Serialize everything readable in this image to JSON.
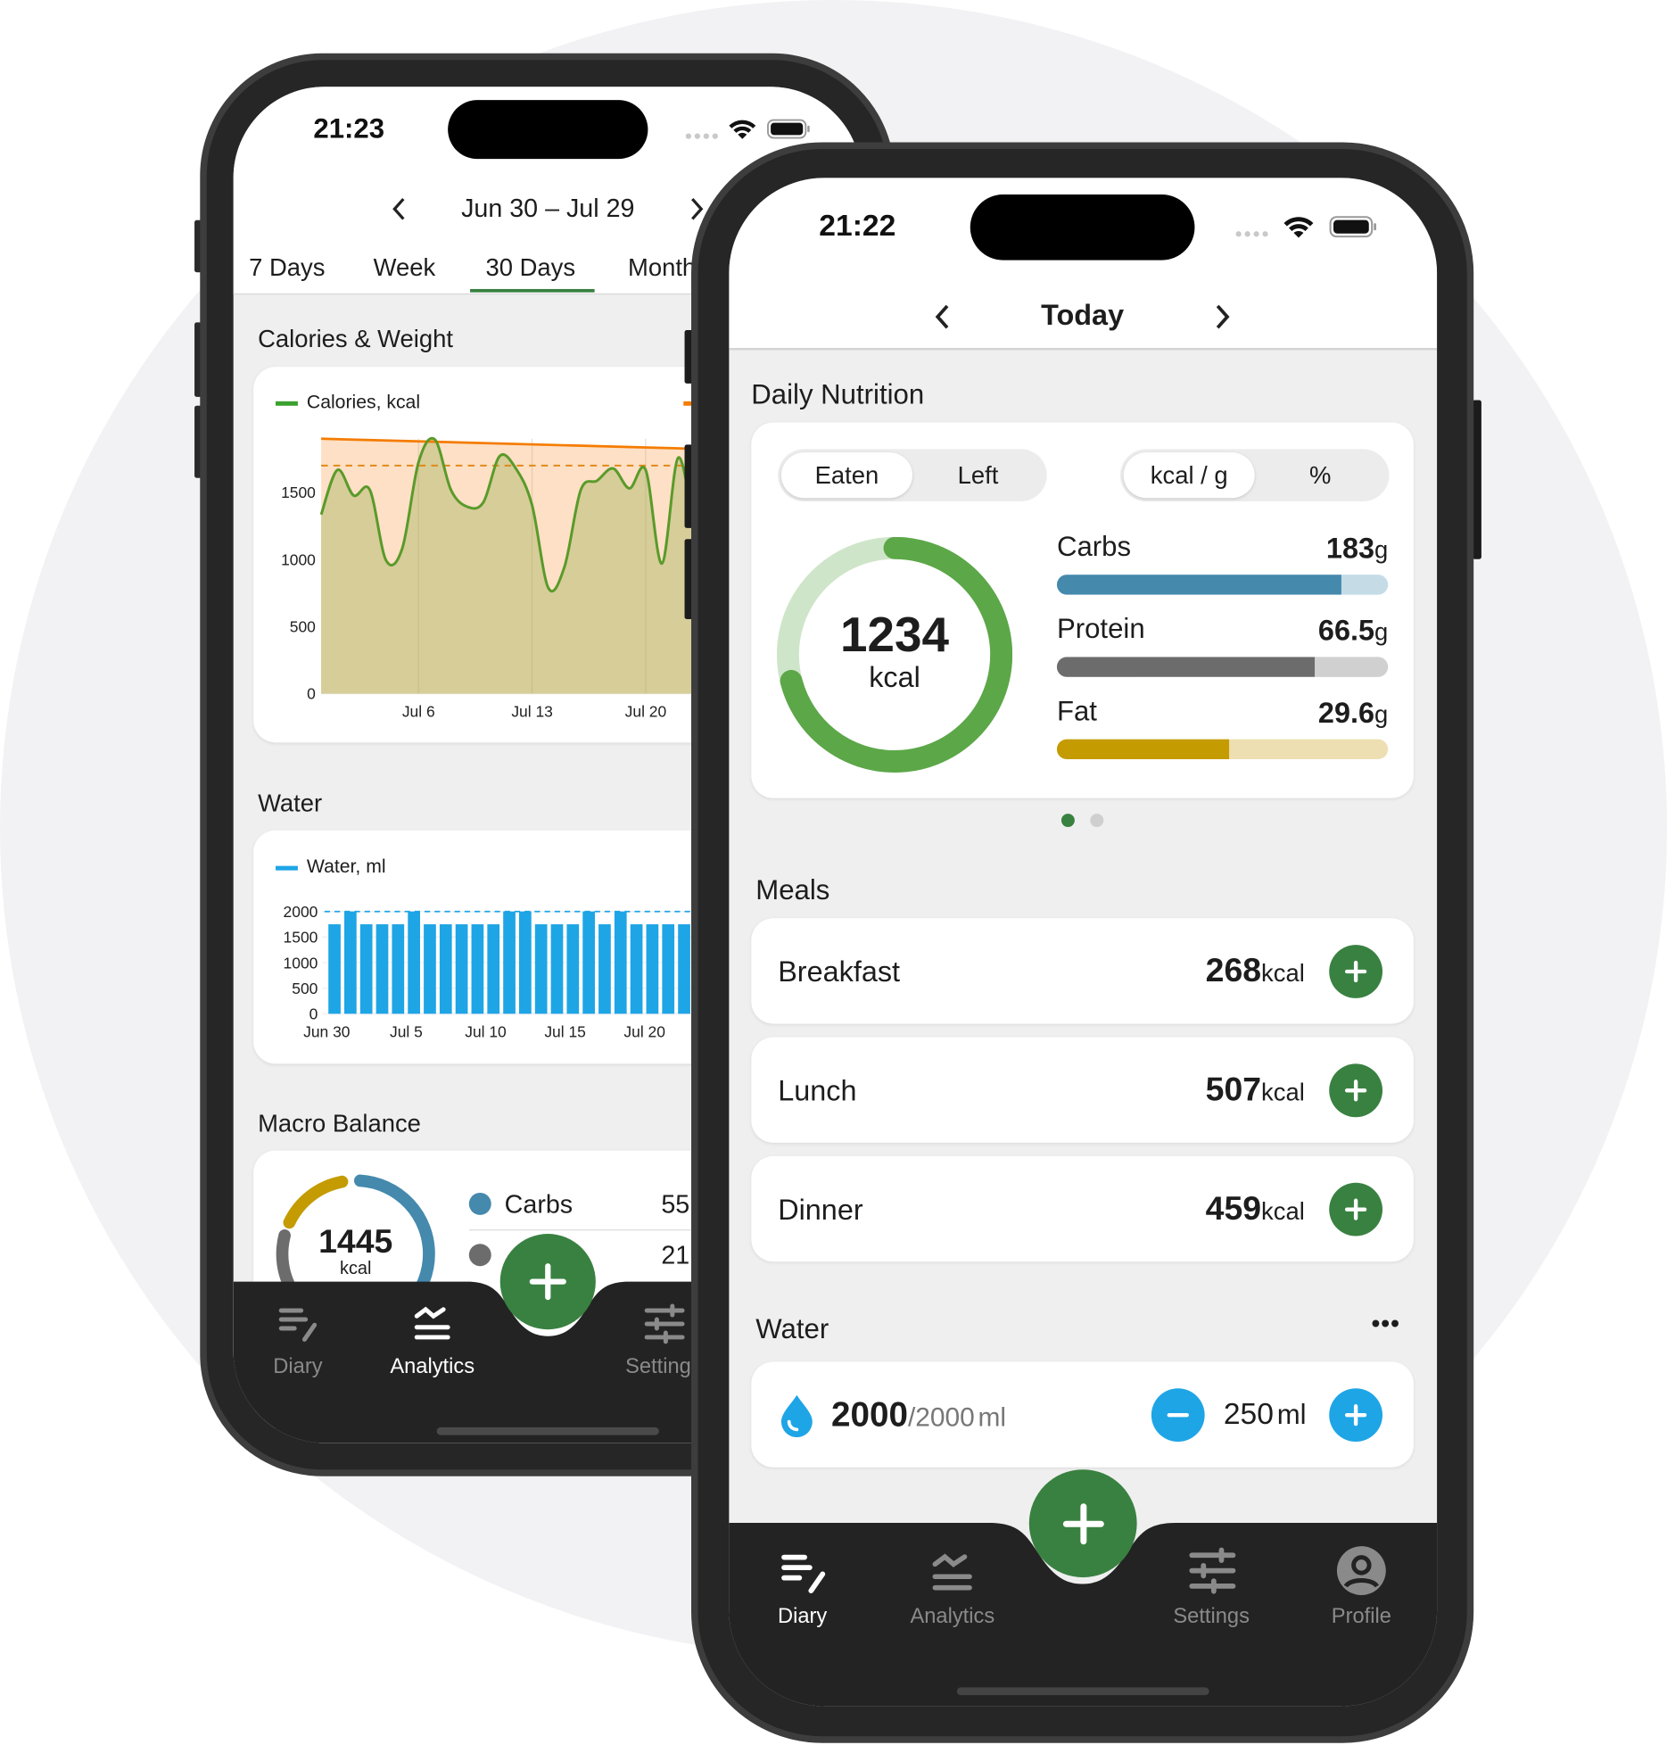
{
  "colors": {
    "green": "#398141",
    "ring_green": "#5ca748",
    "ring_track": "#cfe5c9",
    "carbs": "#4589ad",
    "carbs_track": "#c5dce7",
    "protein": "#6c6c6c",
    "protein_track": "#d0d0d0",
    "fat": "#c49b00",
    "fat_track": "#eedfb2",
    "water": "#1ea5e6",
    "calories_line": "#5a9a2a",
    "weight_line": "#f57c00",
    "nav_bg": "#232323"
  },
  "back_phone": {
    "status": {
      "time": "21:23"
    },
    "header": {
      "range": "Jun 30 – Jul 29"
    },
    "tabs": [
      {
        "label": "7 Days"
      },
      {
        "label": "Week"
      },
      {
        "label": "30 Days",
        "active": true
      },
      {
        "label": "Month"
      }
    ],
    "sections": {
      "calories_weight": "Calories & Weight",
      "water": "Water",
      "macro_balance": "Macro Balance"
    },
    "macro_balance": {
      "total": "1445",
      "unit": "kcal",
      "rows": [
        {
          "label": "Carbs",
          "value": "55",
          "share": 55
        },
        {
          "label": "",
          "value": "21",
          "share": 21
        }
      ]
    },
    "nav": [
      {
        "label": "Diary",
        "icon": "diary-icon"
      },
      {
        "label": "Analytics",
        "icon": "analytics-icon",
        "active": true
      },
      {
        "label": "Settings",
        "icon": "settings-icon"
      }
    ]
  },
  "chart_data": [
    {
      "type": "area",
      "legend": "Calories, kcal",
      "x": [
        "Jun 30",
        "Jul 1",
        "Jul 2",
        "Jul 3",
        "Jul 4",
        "Jul 5",
        "Jul 6",
        "Jul 7",
        "Jul 8",
        "Jul 9",
        "Jul 10",
        "Jul 11",
        "Jul 12",
        "Jul 13",
        "Jul 14",
        "Jul 15",
        "Jul 16",
        "Jul 17",
        "Jul 18",
        "Jul 19",
        "Jul 20",
        "Jul 21",
        "Jul 22",
        "Jul 23"
      ],
      "series": [
        {
          "name": "Calories, kcal",
          "values": [
            1335,
            1667,
            1477,
            1518,
            993,
            1084,
            1724,
            1895,
            1518,
            1393,
            1427,
            1770,
            1678,
            1404,
            788,
            947,
            1518,
            1587,
            1678,
            1530,
            1667,
            970,
            1758,
            1221
          ]
        }
      ],
      "reference_lines": {
        "trend": {
          "start": 1900,
          "end": 1825
        },
        "target_dashed": 1700
      },
      "yticks": [
        "0",
        "500",
        "1000",
        "1500"
      ],
      "xticks": [
        "Jul 6",
        "Jul 13",
        "Jul 20"
      ],
      "ylim": [
        0,
        1900
      ],
      "grid": true
    },
    {
      "type": "bar",
      "legend": "Water, ml",
      "x": [
        "Jun 30",
        "Jul 1",
        "Jul 2",
        "Jul 3",
        "Jul 4",
        "Jul 5",
        "Jul 6",
        "Jul 7",
        "Jul 8",
        "Jul 9",
        "Jul 10",
        "Jul 11",
        "Jul 12",
        "Jul 13",
        "Jul 14",
        "Jul 15",
        "Jul 16",
        "Jul 17",
        "Jul 18",
        "Jul 19",
        "Jul 20",
        "Jul 21",
        "Jul 22"
      ],
      "values": [
        1750,
        2000,
        1750,
        1750,
        1750,
        2000,
        1750,
        1750,
        1750,
        1750,
        1750,
        2000,
        2000,
        1750,
        1750,
        1750,
        2000,
        1750,
        2000,
        1750,
        1750,
        1750,
        1750
      ],
      "goal_dashed": 2000,
      "yticks": [
        "0",
        "500",
        "1000",
        "1500",
        "2000"
      ],
      "xticks": [
        "Jun 30",
        "Jul 5",
        "Jul 10",
        "Jul 15",
        "Jul 20"
      ],
      "ylim": [
        0,
        2000
      ],
      "grid": true
    }
  ],
  "front_phone": {
    "status": {
      "time": "21:22"
    },
    "header": {
      "title": "Today"
    },
    "daily_nutrition": {
      "title": "Daily Nutrition",
      "toggle1": {
        "a": "Eaten",
        "b": "Left"
      },
      "toggle2": {
        "a": "kcal / g",
        "b": "%"
      },
      "calories": "1234",
      "unit": "kcal",
      "progress": 0.71,
      "macros": [
        {
          "label": "Carbs",
          "value": "183",
          "unit": "g",
          "fill": 0.86
        },
        {
          "label": "Protein",
          "value": "66.5",
          "unit": "g",
          "fill": 0.78
        },
        {
          "label": "Fat",
          "value": "29.6",
          "unit": "g",
          "fill": 0.52
        }
      ],
      "page": 1,
      "pages": 2
    },
    "meals": {
      "title": "Meals",
      "items": [
        {
          "name": "Breakfast",
          "value": "268",
          "unit": "kcal"
        },
        {
          "name": "Lunch",
          "value": "507",
          "unit": "kcal"
        },
        {
          "name": "Dinner",
          "value": "459",
          "unit": "kcal"
        }
      ]
    },
    "water": {
      "title": "Water",
      "more": "•••",
      "current": "2000",
      "goal": "/2000",
      "unit": "ml",
      "step": "250",
      "step_unit": "ml"
    },
    "nav": [
      {
        "label": "Diary",
        "icon": "diary-icon",
        "active": true
      },
      {
        "label": "Analytics",
        "icon": "analytics-icon"
      },
      {
        "label": "Settings",
        "icon": "settings-icon"
      },
      {
        "label": "Profile",
        "icon": "profile-icon"
      }
    ]
  }
}
